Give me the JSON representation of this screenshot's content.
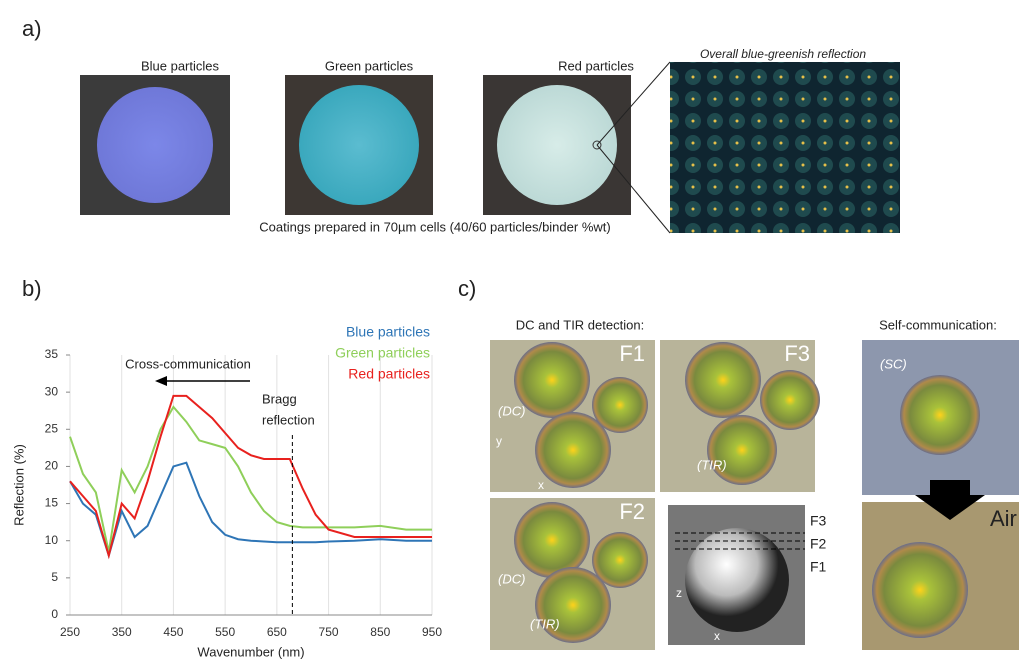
{
  "panels": {
    "a": {
      "label": "a)",
      "photos": [
        "Blue particles",
        "Green particles",
        "Red particles"
      ],
      "micrograph_title": "Overall blue-greenish reflection",
      "caption": "Coatings prepared in 70µm cells (40/60 particles/binder %wt)"
    },
    "b": {
      "label": "b)"
    },
    "c": {
      "label": "c)",
      "left_title": "DC and TIR detection:",
      "right_title": "Self-communication:",
      "frames": [
        "F1",
        "F3",
        "F2"
      ],
      "planes": [
        "F3",
        "F2",
        "F1"
      ],
      "dc": "(DC)",
      "tir": "(TIR)",
      "sc": "(SC)",
      "air": "Air",
      "axis_y": "y",
      "axis_x": "x",
      "axis_z": "z"
    }
  },
  "chart_data": {
    "type": "line",
    "xlabel": "Wavenumber (nm)",
    "ylabel": "Reflection (%)",
    "x": [
      250,
      275,
      300,
      325,
      350,
      375,
      400,
      425,
      450,
      475,
      500,
      525,
      550,
      575,
      600,
      625,
      650,
      675,
      700,
      725,
      750,
      800,
      850,
      900,
      950
    ],
    "series": [
      {
        "name": "Blue particles",
        "color": "#2e75b6",
        "values": [
          18,
          15,
          13.5,
          8,
          14,
          10.5,
          12,
          16,
          20,
          20.5,
          16,
          12.5,
          10.8,
          10.2,
          10,
          9.9,
          9.8,
          9.8,
          9.8,
          9.8,
          9.9,
          10,
          10.2,
          10,
          10
        ]
      },
      {
        "name": "Green particles",
        "color": "#8fcf5a",
        "values": [
          24,
          19,
          16.5,
          8.5,
          19.5,
          16.5,
          20,
          25,
          28,
          26,
          23.5,
          23,
          22.5,
          20,
          16.5,
          14,
          12.5,
          12,
          11.8,
          11.8,
          11.8,
          11.8,
          12,
          11.5,
          11.5
        ]
      },
      {
        "name": "Red particles",
        "color": "#e8211e",
        "values": [
          18,
          16,
          14,
          8,
          15,
          13,
          18,
          24,
          29.5,
          29.5,
          28,
          26.5,
          24.5,
          22.5,
          21.5,
          21,
          21,
          21,
          17,
          13.5,
          11.5,
          10.5,
          10.5,
          10.5,
          10.5
        ]
      }
    ],
    "xlim": [
      250,
      950
    ],
    "ylim": [
      0,
      35
    ],
    "xticks": [
      250,
      350,
      450,
      550,
      650,
      750,
      850,
      950
    ],
    "yticks": [
      0,
      5,
      10,
      15,
      20,
      25,
      30,
      35
    ],
    "grid": true,
    "annotations": {
      "cross": "Cross-communication",
      "bragg": [
        "Bragg",
        "reflection"
      ],
      "bragg_x": 680
    }
  }
}
